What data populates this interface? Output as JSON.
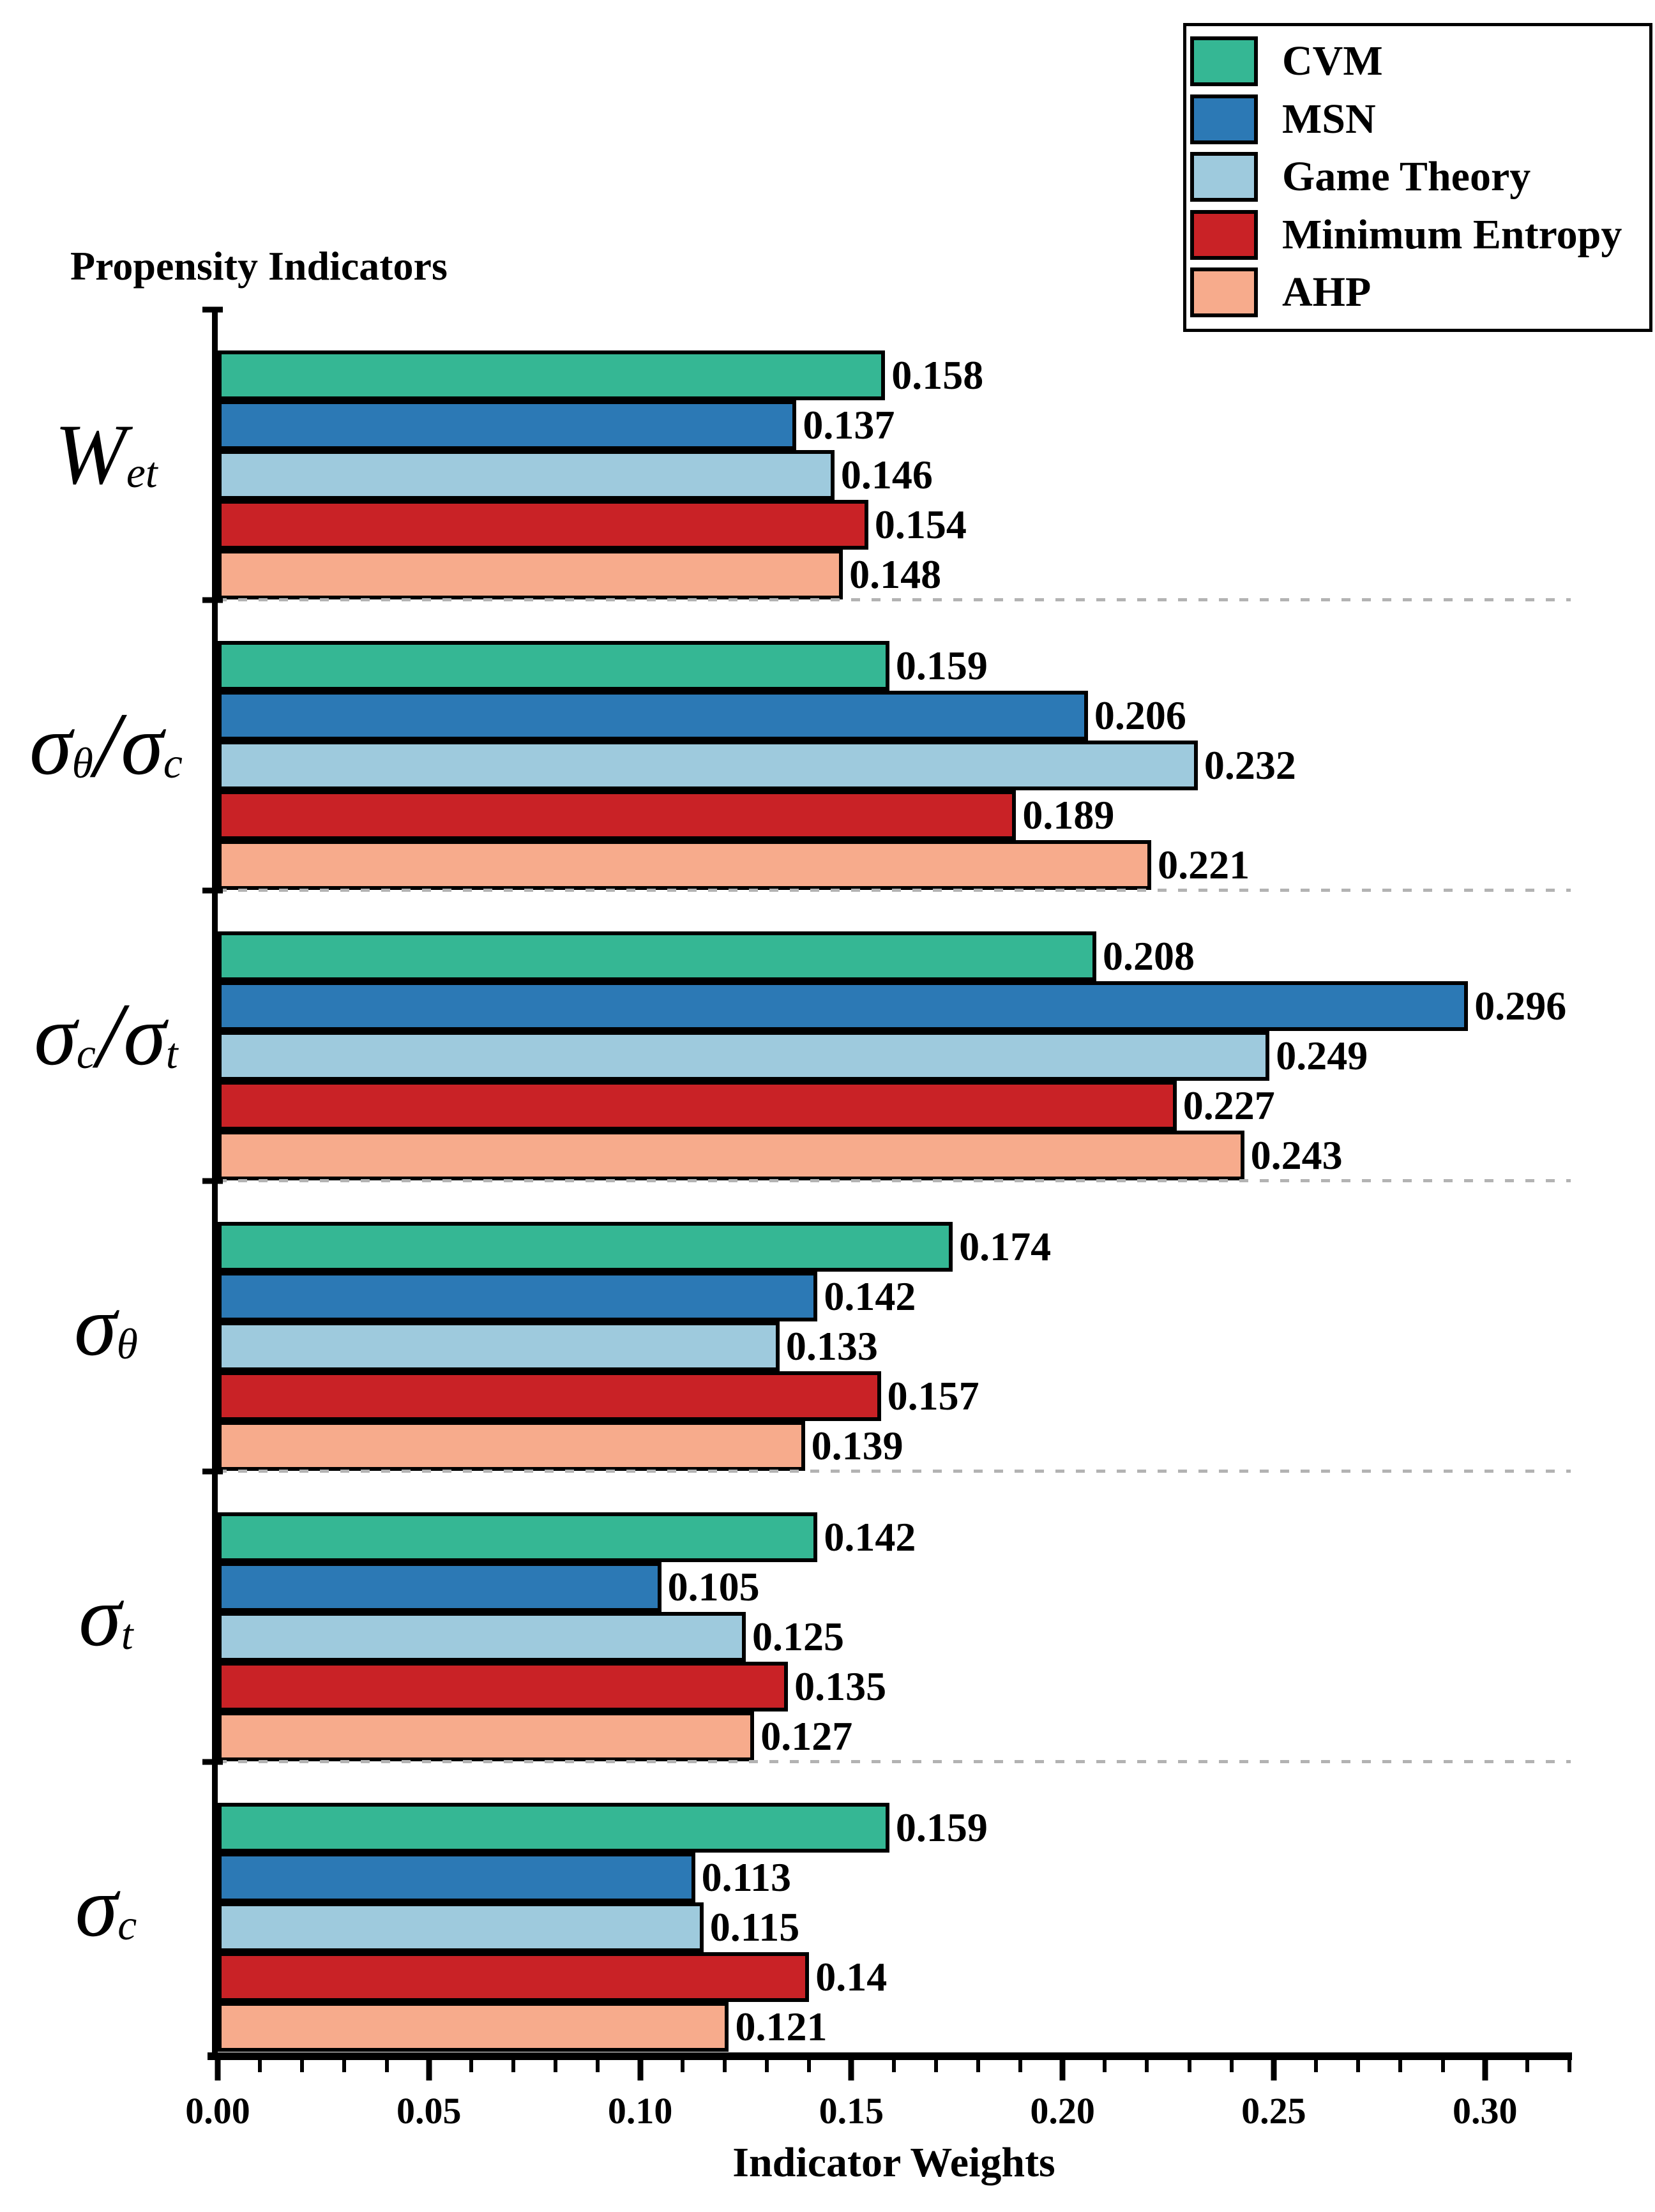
{
  "title": "Propensity Indicators",
  "chart_data": {
    "type": "bar",
    "orientation": "horizontal",
    "title": "Propensity Indicators",
    "xlabel": "Indicator Weights",
    "xlim": [
      0,
      0.3203
    ],
    "xticks": [
      "0.00",
      "0.05",
      "0.10",
      "0.15",
      "0.20",
      "0.25",
      "0.30"
    ],
    "minor_tick_step": 0.01,
    "minor_tick_max": 0.32,
    "grid": "dashed-group-dividers",
    "legend_position": "upper-right",
    "divider_color": "#b3b3b3",
    "bar_outline_color": "#000000",
    "categories": [
      {
        "id": "W_et",
        "segments": [
          {
            "base": "W",
            "sub": "et"
          }
        ]
      },
      {
        "id": "sigma_theta_over_sigma_c",
        "segments": [
          {
            "base": "σ",
            "sub": "θ"
          },
          {
            "base": "/",
            "sub": ""
          },
          {
            "base": "σ",
            "sub": "c"
          }
        ]
      },
      {
        "id": "sigma_c_over_sigma_t",
        "segments": [
          {
            "base": "σ",
            "sub": "c"
          },
          {
            "base": "/",
            "sub": ""
          },
          {
            "base": "σ",
            "sub": "t"
          }
        ]
      },
      {
        "id": "sigma_theta",
        "segments": [
          {
            "base": "σ",
            "sub": "θ"
          }
        ]
      },
      {
        "id": "sigma_t",
        "segments": [
          {
            "base": "σ",
            "sub": "t"
          }
        ]
      },
      {
        "id": "sigma_c",
        "segments": [
          {
            "base": "σ",
            "sub": "c"
          }
        ]
      }
    ],
    "series": [
      {
        "name": "CVM",
        "color": "#35B794",
        "values": [
          0.158,
          0.159,
          0.208,
          0.174,
          0.142,
          0.159
        ]
      },
      {
        "name": "MSN",
        "color": "#2C79B5",
        "values": [
          0.137,
          0.206,
          0.296,
          0.142,
          0.105,
          0.113
        ]
      },
      {
        "name": "Game Theory",
        "color": "#9ECADD",
        "values": [
          0.146,
          0.232,
          0.249,
          0.133,
          0.125,
          0.115
        ]
      },
      {
        "name": "Minimum Entropy",
        "color": "#C92226",
        "values": [
          0.154,
          0.189,
          0.227,
          0.157,
          0.135,
          0.14
        ]
      },
      {
        "name": "AHP",
        "color": "#F7AB8C",
        "values": [
          0.148,
          0.221,
          0.243,
          0.139,
          0.127,
          0.121
        ]
      }
    ]
  }
}
